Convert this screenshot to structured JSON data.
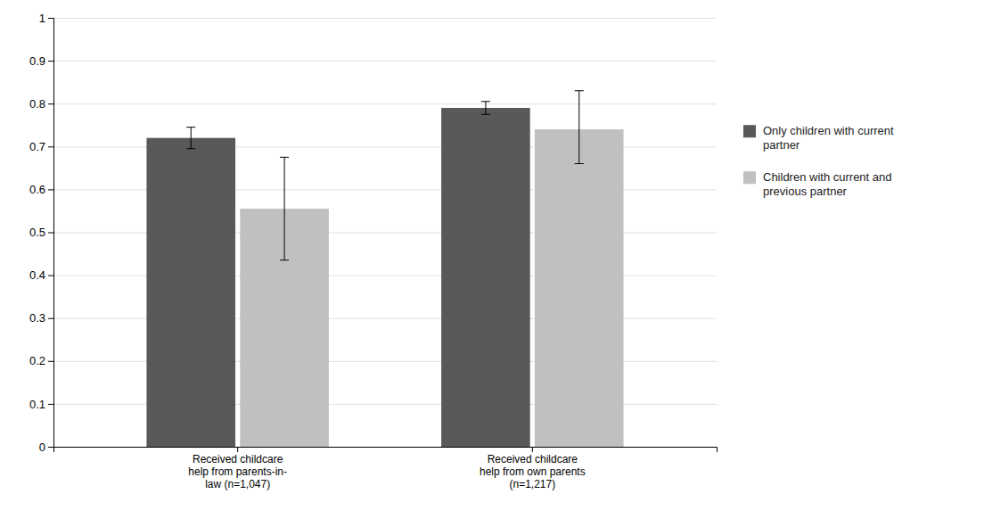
{
  "chart_data": {
    "type": "bar",
    "categories": [
      "Received childcare\nhelp from parents-in-\nlaw (n=1,047)",
      "Received childcare\nhelp from own parents\n(n=1,217)"
    ],
    "series": [
      {
        "name": "Only children with current\npartner",
        "color": "#595959",
        "values": [
          0.72,
          0.79
        ],
        "errors_up": [
          0.025,
          0.015
        ],
        "errors_down": [
          0.025,
          0.015
        ]
      },
      {
        "name": "Children with current and\nprevious partner",
        "color": "#c0c0c0",
        "values": [
          0.555,
          0.74
        ],
        "errors_up": [
          0.12,
          0.09
        ],
        "errors_down": [
          0.12,
          0.08
        ]
      }
    ],
    "ylim": [
      0,
      1.0
    ],
    "yticks": [
      0,
      0.1,
      0.2,
      0.3,
      0.4,
      0.5,
      0.6,
      0.7,
      0.8,
      0.9,
      1
    ],
    "grid": true,
    "legend": "right"
  }
}
